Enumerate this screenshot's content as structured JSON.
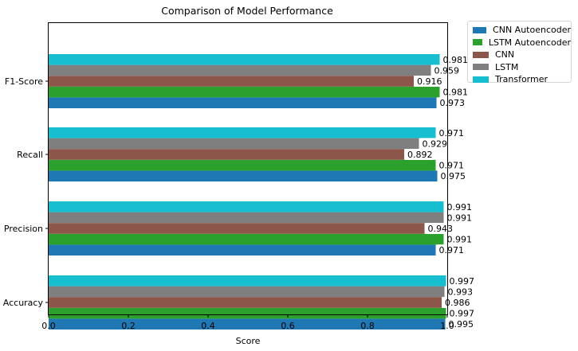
{
  "chart_data": {
    "type": "bar",
    "orientation": "horizontal",
    "title": "Comparison of Model Performance",
    "xlabel": "Score",
    "ylabel": "",
    "xlim": [
      0,
      1.0
    ],
    "xticks": [
      "0.0",
      "0.2",
      "0.4",
      "0.6",
      "0.8",
      "1.0"
    ],
    "categories": [
      "Accuracy",
      "Precision",
      "Recall",
      "F1-Score"
    ],
    "grid": false,
    "legend_position": "outside top-right",
    "series": [
      {
        "name": "CNN Autoencoder",
        "color": "#1f77b4",
        "values": [
          0.995,
          0.971,
          0.975,
          0.973
        ],
        "labels": [
          "0.995",
          "0.971",
          "0.975",
          "0.973"
        ]
      },
      {
        "name": "LSTM Autoencoder",
        "color": "#2ca02c",
        "values": [
          0.997,
          0.991,
          0.971,
          0.981
        ],
        "labels": [
          "0.997",
          "0.991",
          "0.971",
          "0.981"
        ]
      },
      {
        "name": "CNN",
        "color": "#8c564b",
        "values": [
          0.986,
          0.943,
          0.892,
          0.916
        ],
        "labels": [
          "0.986",
          "0.943",
          "0.892",
          "0.916"
        ]
      },
      {
        "name": "LSTM",
        "color": "#7f7f7f",
        "values": [
          0.993,
          0.991,
          0.929,
          0.959
        ],
        "labels": [
          "0.993",
          "0.991",
          "0.929",
          "0.959"
        ]
      },
      {
        "name": "Transformer",
        "color": "#17becf",
        "values": [
          0.997,
          0.991,
          0.971,
          0.981
        ],
        "labels": [
          "0.997",
          "0.991",
          "0.971",
          "0.981"
        ]
      }
    ]
  }
}
